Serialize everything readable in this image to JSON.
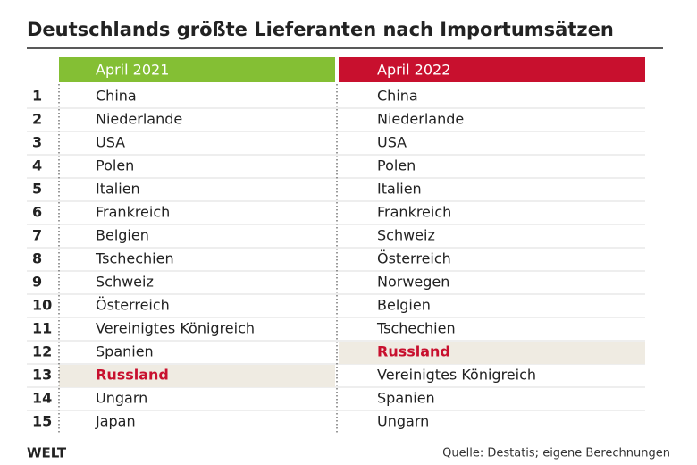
{
  "header": {
    "title": "Deutschlands größte Lieferanten nach Importumsätzen"
  },
  "table": {
    "columns": [
      "April 2021",
      "April 2022"
    ],
    "rows": [
      [
        1,
        "China",
        "China"
      ],
      [
        2,
        "Niederlande",
        "Niederlande"
      ],
      [
        3,
        "USA",
        "USA"
      ],
      [
        4,
        "Polen",
        "Polen"
      ],
      [
        5,
        "Italien",
        "Italien"
      ],
      [
        6,
        "Frankreich",
        "Frankreich"
      ],
      [
        7,
        "Belgien",
        "Schweiz"
      ],
      [
        8,
        "Tschechien",
        "Österreich"
      ],
      [
        9,
        "Schweiz",
        "Norwegen"
      ],
      [
        10,
        "Österreich",
        "Belgien"
      ],
      [
        11,
        "Vereinigtes Königreich",
        "Tschechien"
      ],
      [
        12,
        "Spanien",
        {
          "text": "Russland",
          "highlight": true
        }
      ],
      [
        13,
        {
          "text": "Russland",
          "highlight": true
        },
        "Vereinigtes Königreich"
      ],
      [
        14,
        "Ungarn",
        "Spanien"
      ],
      [
        15,
        "Japan",
        "Ungarn"
      ]
    ]
  },
  "footer": {
    "logo": "WELT",
    "source": "Quelle: Destatis; eigene Berechnungen"
  }
}
